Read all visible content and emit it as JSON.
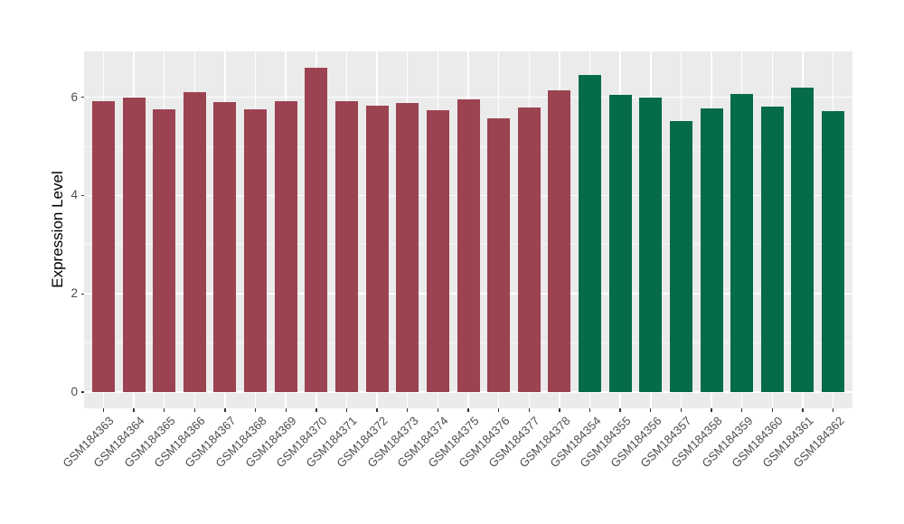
{
  "figure": {
    "background": "#ffffff",
    "panel_background": "#ebebeb",
    "grid_major_color": "#ffffff",
    "grid_minor_color": "#ffffff",
    "axis_text_color": "#4d4d4d",
    "axis_title_color": "#000000",
    "tick_mark_color": "#333333"
  },
  "chart_data": {
    "type": "bar",
    "title": "",
    "xlabel": "",
    "ylabel": "Expression Level",
    "ylim": [
      -0.33,
      6.93
    ],
    "yticks": [
      0,
      2,
      4,
      6
    ],
    "grid": "major-and-minor",
    "legend_position": "none",
    "x_tick_angle": 45,
    "group_colors": {
      "dark_red": "#9b4351",
      "dark_green": "#056b4a"
    },
    "bars": [
      {
        "label": "GSM184363",
        "value": 5.92,
        "group": "dark_red"
      },
      {
        "label": "GSM184364",
        "value": 6.0,
        "group": "dark_red"
      },
      {
        "label": "GSM184365",
        "value": 5.76,
        "group": "dark_red"
      },
      {
        "label": "GSM184366",
        "value": 6.11,
        "group": "dark_red"
      },
      {
        "label": "GSM184367",
        "value": 5.9,
        "group": "dark_red"
      },
      {
        "label": "GSM184368",
        "value": 5.76,
        "group": "dark_red"
      },
      {
        "label": "GSM184369",
        "value": 5.92,
        "group": "dark_red"
      },
      {
        "label": "GSM184370",
        "value": 6.6,
        "group": "dark_red"
      },
      {
        "label": "GSM184371",
        "value": 5.91,
        "group": "dark_red"
      },
      {
        "label": "GSM184372",
        "value": 5.82,
        "group": "dark_red"
      },
      {
        "label": "GSM184373",
        "value": 5.89,
        "group": "dark_red"
      },
      {
        "label": "GSM184374",
        "value": 5.74,
        "group": "dark_red"
      },
      {
        "label": "GSM184375",
        "value": 5.95,
        "group": "dark_red"
      },
      {
        "label": "GSM184376",
        "value": 5.57,
        "group": "dark_red"
      },
      {
        "label": "GSM184377",
        "value": 5.79,
        "group": "dark_red"
      },
      {
        "label": "GSM184378",
        "value": 6.14,
        "group": "dark_red"
      },
      {
        "label": "GSM184354",
        "value": 6.45,
        "group": "dark_green"
      },
      {
        "label": "GSM184355",
        "value": 6.05,
        "group": "dark_green"
      },
      {
        "label": "GSM184356",
        "value": 6.0,
        "group": "dark_green"
      },
      {
        "label": "GSM184357",
        "value": 5.51,
        "group": "dark_green"
      },
      {
        "label": "GSM184358",
        "value": 5.78,
        "group": "dark_green"
      },
      {
        "label": "GSM184359",
        "value": 6.06,
        "group": "dark_green"
      },
      {
        "label": "GSM184360",
        "value": 5.81,
        "group": "dark_green"
      },
      {
        "label": "GSM184361",
        "value": 6.2,
        "group": "dark_green"
      },
      {
        "label": "GSM184362",
        "value": 5.72,
        "group": "dark_green"
      }
    ]
  }
}
